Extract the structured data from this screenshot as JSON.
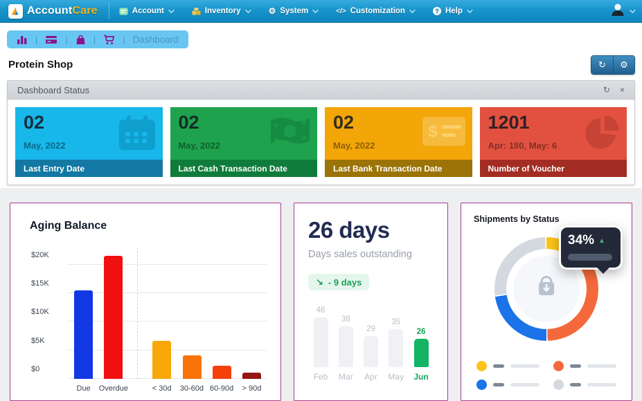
{
  "navbar": {
    "brand": {
      "name_primary": "Account",
      "name_secondary": "Care",
      "logo_icon": "triangle-a-logo-icon",
      "accent_color": "#f7b717",
      "bar_color": "#0e84bd"
    },
    "menu": [
      {
        "label": "Account",
        "icon": "ledger-icon"
      },
      {
        "label": "Inventory",
        "icon": "boxes-icon"
      },
      {
        "label": "System",
        "icon": "gear-icon"
      },
      {
        "label": "Customization",
        "icon": "code-icon"
      },
      {
        "label": "Help",
        "icon": "question-icon"
      }
    ],
    "user": {
      "icon": "user-avatar-icon"
    }
  },
  "breadcrumb": {
    "icons": [
      "bar-chart-icon",
      "credit-card-icon",
      "shopping-bag-icon",
      "shopping-cart-icon"
    ],
    "separator": "|",
    "current": "Dashboard",
    "bg_color": "#69c6f1",
    "icon_color": "#8b1290"
  },
  "page": {
    "title": "Protein Shop",
    "header_actions": [
      "refresh-icon",
      "gear-icon"
    ]
  },
  "status_panel": {
    "title": "Dashboard Status",
    "actions": [
      "refresh-icon",
      "close-icon"
    ],
    "cards": [
      {
        "value": "02",
        "subtitle": "May, 2022",
        "label": "Last Entry Date",
        "icon": "calendar-icon",
        "bg": "#17b7e9",
        "footer_bg": "#1378a3",
        "icon_color": "#0f9fce"
      },
      {
        "value": "02",
        "subtitle": "May, 2022",
        "label": "Last Cash Transaction Date",
        "icon": "money-bill-icon",
        "bg": "#1ea24d",
        "footer_bg": "#107c3b",
        "icon_color": "#168b42"
      },
      {
        "value": "02",
        "subtitle": "May, 2022",
        "label": "Last Bank Transaction Date",
        "icon": "money-check-icon",
        "bg": "#f2a608",
        "footer_bg": "#9b7306",
        "icon_color": "#f6bb3c"
      },
      {
        "value": "1201",
        "subtitle": "Apr: 180, May: 6",
        "label": "Number of Voucher",
        "icon": "pie-chart-icon",
        "bg": "#e25140",
        "footer_bg": "#a32d23",
        "icon_color": "#c64435"
      }
    ]
  },
  "chart_data": [
    {
      "type": "bar",
      "title": "Aging Balance",
      "categories": [
        "Due",
        "Overdue",
        "< 30d",
        "30-60d",
        "60-90d",
        "> 90d"
      ],
      "values": [
        15500,
        21500,
        6600,
        4100,
        2300,
        1100
      ],
      "bar_colors": [
        "#1238e4",
        "#f01010",
        "#f7a707",
        "#f87207",
        "#f5400c",
        "#951512"
      ],
      "yticks": [
        {
          "value": 0,
          "label": "$0"
        },
        {
          "value": 5000,
          "label": "$5K"
        },
        {
          "value": 10000,
          "label": "$10K"
        },
        {
          "value": 15000,
          "label": "$15K"
        },
        {
          "value": 20000,
          "label": "$20K"
        }
      ],
      "ylim": [
        0,
        23000
      ],
      "grid": "dotted-horizontal",
      "separator_after_index": 1
    },
    {
      "type": "bar",
      "headline": "26 days",
      "title": "Days sales outstanding",
      "delta_badge": {
        "text": "- 9 days",
        "trend_icon": "arrow-down-right-icon",
        "color": "#1ca05c",
        "bg": "#e4f6ec"
      },
      "categories": [
        "Feb",
        "Mar",
        "Apr",
        "May",
        "Jun"
      ],
      "values": [
        46,
        38,
        29,
        35,
        26
      ],
      "highlight_index": 4,
      "bar_color": "#eff1f4",
      "highlight_color": "#13b463",
      "ylim": [
        0,
        46
      ]
    },
    {
      "type": "donut",
      "title": "Shipments by Status",
      "center_icon": "package-receive-icon",
      "tooltip": {
        "value": "34%",
        "trend": "up",
        "trend_icon": "triangle-up-icon",
        "trend_color": "#4caf7d"
      },
      "segments": [
        {
          "name": "yellow",
          "color": "#fbc31c",
          "percent": 9
        },
        {
          "name": "orange",
          "color": "#f4693b",
          "percent": 41
        },
        {
          "name": "blue",
          "color": "#1a73e8",
          "percent": 23
        },
        {
          "name": "gray",
          "color": "#d4d9e0",
          "percent": 27
        }
      ],
      "legend_order": [
        "yellow",
        "orange",
        "blue",
        "gray"
      ],
      "legend_position": "bottom"
    }
  ]
}
